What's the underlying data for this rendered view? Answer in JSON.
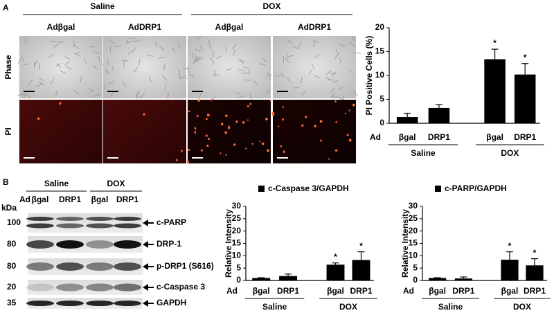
{
  "panel_a": {
    "label": "A",
    "groups": [
      "Saline",
      "DOX"
    ],
    "conditions": [
      "Adβgal",
      "AdDRP1",
      "Adβgal",
      "AdDRP1"
    ],
    "rows": [
      "Phase",
      "PI"
    ]
  },
  "panel_b": {
    "label": "B",
    "groups": [
      "Saline",
      "DOX"
    ],
    "lane_prefix": "Ad",
    "lanes": [
      "βgal",
      "DRP1",
      "βgal",
      "DRP1"
    ],
    "kda_label": "kDa",
    "blots": [
      {
        "kda": 100,
        "label": "c-PARP"
      },
      {
        "kda": 80,
        "label": "DRP-1"
      },
      {
        "kda": 80,
        "label": "p-DRP1 (S616)"
      },
      {
        "kda": 20,
        "label": "c-Caspase 3"
      },
      {
        "kda": 35,
        "label": "GAPDH"
      }
    ]
  },
  "chart_data": [
    {
      "type": "bar",
      "y_label": "PI Positive Cells (%)",
      "category_prefix": "Ad",
      "categories": [
        "βgal",
        "DRP1",
        "βgal",
        "DRP1"
      ],
      "groups": [
        "Saline",
        "DOX"
      ],
      "values": [
        1.3,
        3.2,
        13.4,
        10.2
      ],
      "errors": [
        0.8,
        0.7,
        2.1,
        2.3
      ],
      "annotations": [
        null,
        null,
        "*",
        "*"
      ],
      "color": "#000000",
      "ylim": [
        0,
        20
      ],
      "yticks": [
        0,
        5,
        10,
        15,
        20
      ]
    },
    {
      "type": "bar",
      "legend": "c-Caspase 3/GAPDH",
      "y_label": "Relative Intensity",
      "category_prefix": "Ad",
      "categories": [
        "βgal",
        "DRP1",
        "βgal",
        "DRP1"
      ],
      "groups": [
        "Saline",
        "DOX"
      ],
      "values": [
        1.0,
        1.8,
        6.4,
        8.3
      ],
      "errors": [
        0.1,
        0.8,
        0.7,
        3.3
      ],
      "annotations": [
        null,
        null,
        "*",
        "*"
      ],
      "color": "#000000",
      "ylim": [
        0,
        30
      ],
      "yticks": [
        0,
        5,
        10,
        15,
        20,
        25,
        30
      ]
    },
    {
      "type": "bar",
      "legend": "c-PARP/GAPDH",
      "y_label": "Relative Intensity",
      "category_prefix": "Ad",
      "categories": [
        "βgal",
        "DRP1",
        "βgal",
        "DRP1"
      ],
      "groups": [
        "Saline",
        "DOX"
      ],
      "values": [
        1.0,
        0.8,
        8.4,
        6.1
      ],
      "errors": [
        0.1,
        0.6,
        3.2,
        2.7
      ],
      "annotations": [
        null,
        null,
        "*",
        "*"
      ],
      "color": "#000000",
      "ylim": [
        0,
        30
      ],
      "yticks": [
        0,
        5,
        10,
        15,
        20,
        25,
        30
      ]
    }
  ]
}
